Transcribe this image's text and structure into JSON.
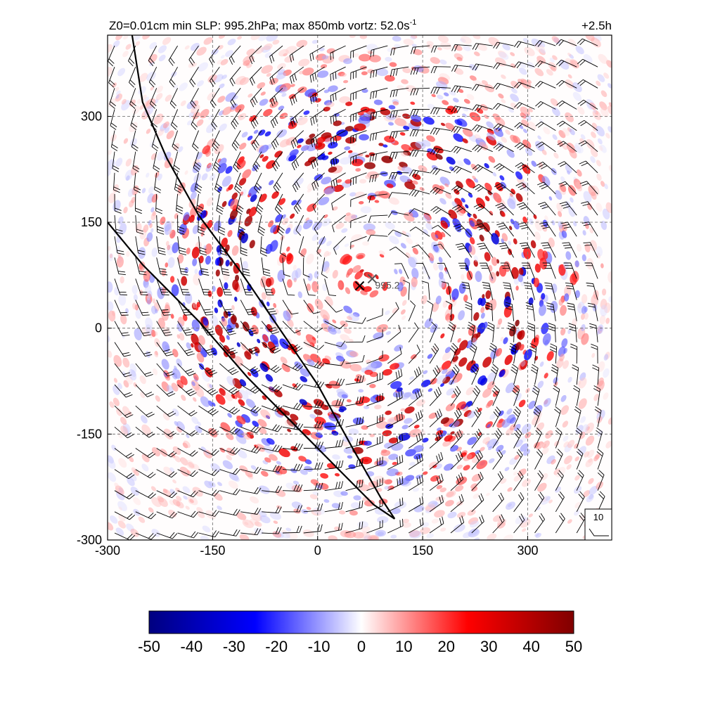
{
  "chart_data": {
    "type": "heatmap",
    "title": "Z0=0.01cm  min SLP: 995.2hPa; max 850mb vortz:  52.0s",
    "title_superscript": "-1",
    "time_label": "+2.5h",
    "x_ticks": [
      -300,
      -150,
      0,
      150,
      300
    ],
    "y_ticks": [
      -300,
      -150,
      0,
      150,
      300
    ],
    "xlim": [
      -300,
      420
    ],
    "ylim": [
      -300,
      415
    ],
    "grid": true,
    "colorbar": {
      "ticks": [
        -50,
        -40,
        -30,
        -20,
        -10,
        0,
        10,
        20,
        30,
        40,
        50
      ],
      "range": [
        -50,
        50
      ],
      "colormap": [
        "#000080",
        "#0000ff",
        "#ffffff",
        "#ff0000",
        "#800000"
      ]
    },
    "center_markers": [
      {
        "x": 60,
        "y": 60,
        "label": ""
      },
      {
        "x": 78,
        "y": 70,
        "label": "995.2"
      }
    ],
    "front_lines": [
      {
        "points": [
          [
            -265,
            415
          ],
          [
            -250,
            320
          ],
          [
            -215,
            240
          ],
          [
            -170,
            160
          ],
          [
            -110,
            80
          ],
          [
            -55,
            0
          ],
          [
            0,
            -80
          ],
          [
            50,
            -170
          ],
          [
            90,
            -240
          ],
          [
            110,
            -270
          ]
        ]
      },
      {
        "points": [
          [
            -300,
            150
          ],
          [
            -250,
            90
          ],
          [
            -170,
            10
          ],
          [
            -100,
            -70
          ],
          [
            -30,
            -140
          ],
          [
            30,
            -200
          ],
          [
            80,
            -250
          ],
          [
            110,
            -270
          ]
        ]
      }
    ],
    "storm_center": [
      70,
      65
    ],
    "barb_spacing": 30,
    "reference_barb": {
      "value": "10"
    }
  }
}
